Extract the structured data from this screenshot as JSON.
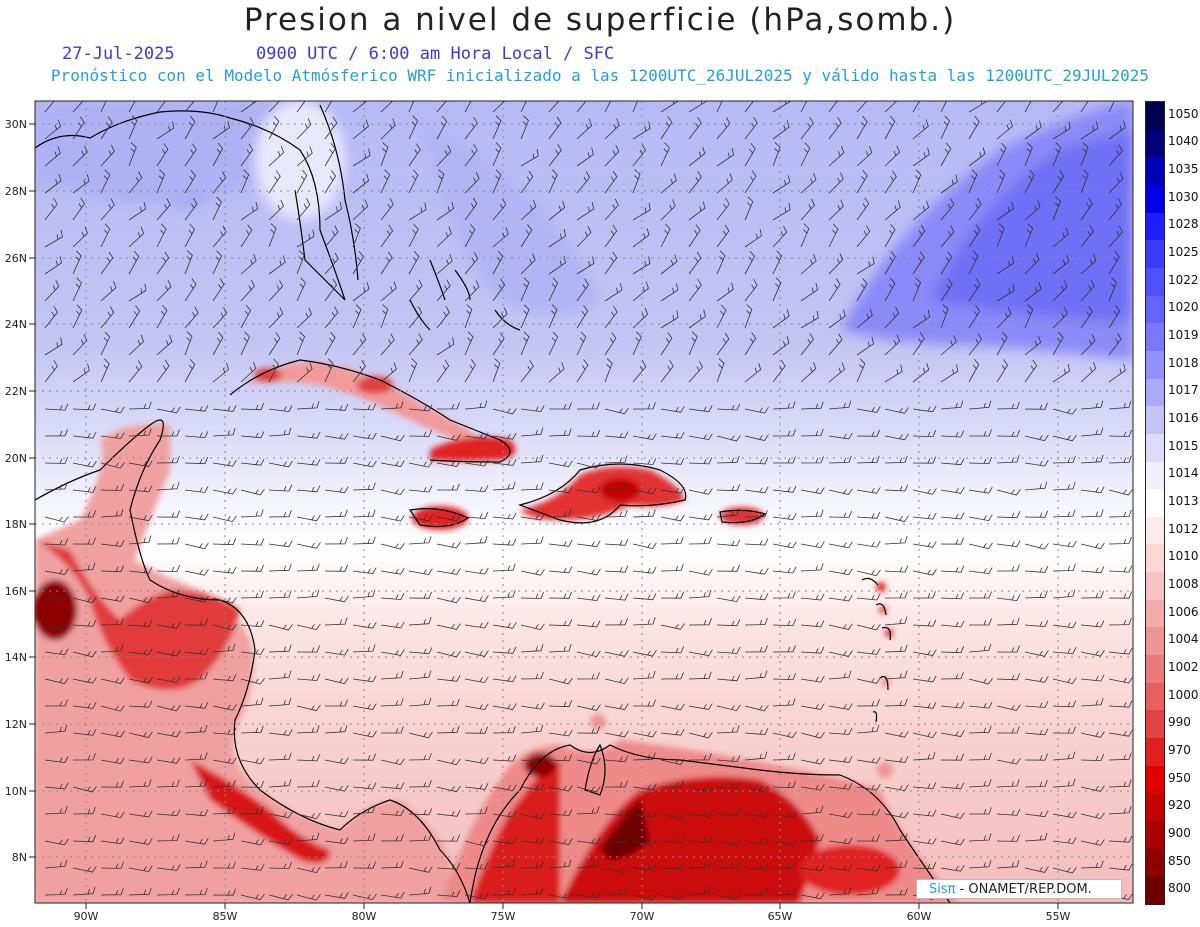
{
  "header": {
    "title": "Presion a nivel de superficie (hPa,somb.)",
    "date": "27-Jul-2025",
    "time": "0900 UTC / 6:00 am Hora Local / SFC",
    "subtitle": "Pronóstico con el Modelo Atmósferico WRF inicializado a las 1200UTC_26JUL2025 y válido hasta las  1200UTC_29JUL2025"
  },
  "map": {
    "lat_ticks": [
      "30N",
      "28N",
      "26N",
      "24N",
      "22N",
      "20N",
      "18N",
      "16N",
      "14N",
      "12N",
      "10N",
      "8N"
    ],
    "lon_ticks": [
      "90W",
      "85W",
      "80W",
      "75W",
      "70W",
      "65W",
      "60W",
      "55W"
    ],
    "lat_range": [
      6.7,
      30.7
    ],
    "lon_range": [
      -92,
      -52.3
    ]
  },
  "legend": {
    "levels": [
      {
        "label": "1050",
        "color": "#000050"
      },
      {
        "label": "1040",
        "color": "#000078"
      },
      {
        "label": "1035",
        "color": "#0000b4"
      },
      {
        "label": "1030",
        "color": "#0000e6"
      },
      {
        "label": "1028",
        "color": "#1e1eff"
      },
      {
        "label": "1025",
        "color": "#3c3cff"
      },
      {
        "label": "1022",
        "color": "#5050ff"
      },
      {
        "label": "1020",
        "color": "#6464ff"
      },
      {
        "label": "1019",
        "color": "#7878ff"
      },
      {
        "label": "1018",
        "color": "#9292ff"
      },
      {
        "label": "1017",
        "color": "#aaaaf8"
      },
      {
        "label": "1016",
        "color": "#c4c4f4"
      },
      {
        "label": "1015",
        "color": "#dcdcf8"
      },
      {
        "label": "1014",
        "color": "#f0f0fc"
      },
      {
        "label": "1013",
        "color": "#ffffff"
      },
      {
        "label": "1012",
        "color": "#fdeaea"
      },
      {
        "label": "1010",
        "color": "#fad6d6"
      },
      {
        "label": "1008",
        "color": "#f7c2c2"
      },
      {
        "label": "1006",
        "color": "#f3abab"
      },
      {
        "label": "1004",
        "color": "#ee9494"
      },
      {
        "label": "1002",
        "color": "#ea7b7b"
      },
      {
        "label": "1000",
        "color": "#e56060"
      },
      {
        "label": "990",
        "color": "#e04444"
      },
      {
        "label": "970",
        "color": "#e02020"
      },
      {
        "label": "950",
        "color": "#e00000"
      },
      {
        "label": "920",
        "color": "#c40000"
      },
      {
        "label": "900",
        "color": "#a80000"
      },
      {
        "label": "850",
        "color": "#8c0000"
      },
      {
        "label": "800",
        "color": "#6e0000"
      }
    ]
  },
  "credit": {
    "brand": "Sisπ",
    "text": "- ONAMET/REP.DOM."
  }
}
